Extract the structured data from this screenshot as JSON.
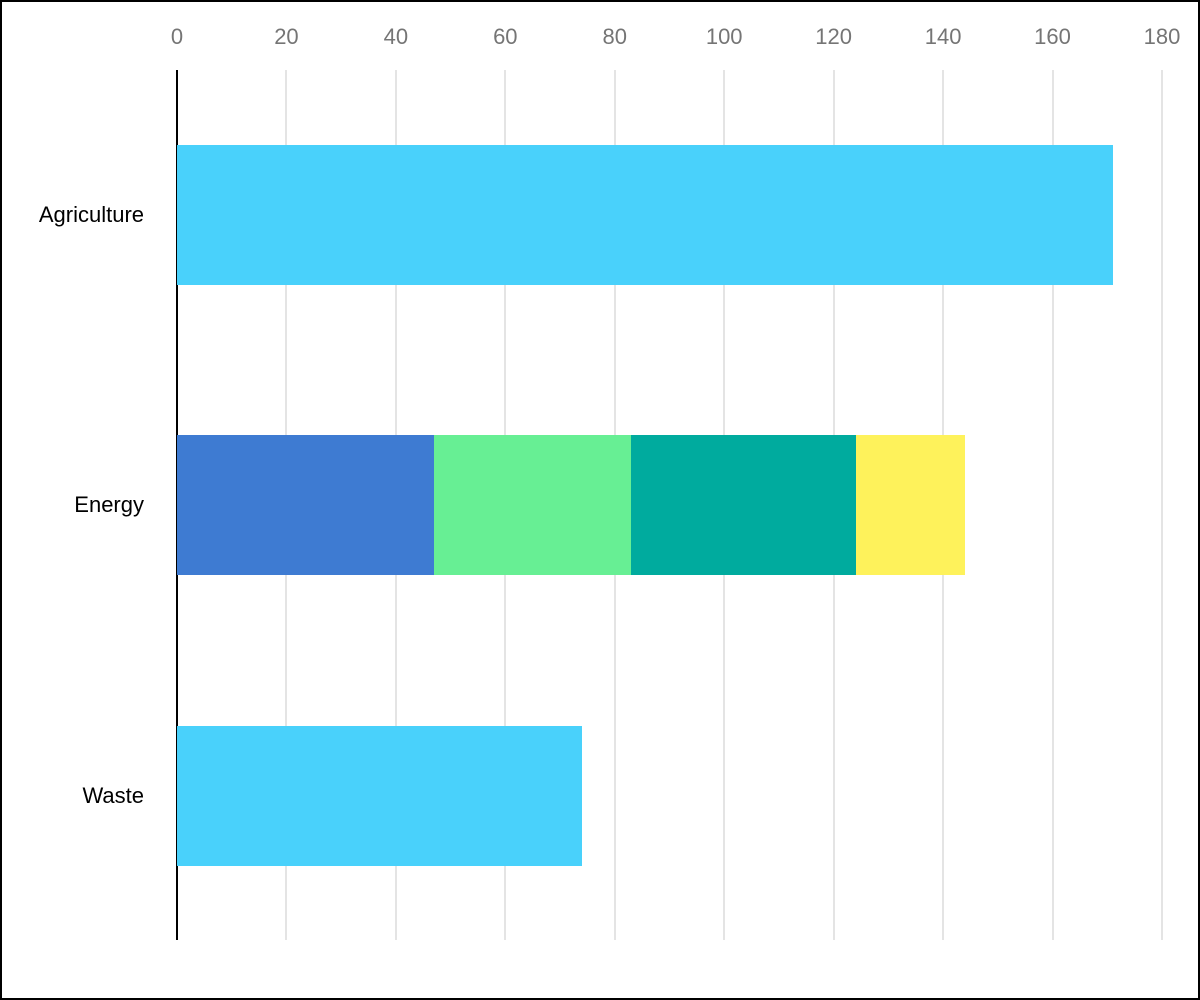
{
  "chart_data": {
    "type": "bar",
    "orientation": "horizontal",
    "title": "",
    "legend": "none",
    "grid": true,
    "categories": [
      "Agriculture",
      "Energy",
      "Waste"
    ],
    "x_axis": {
      "position": "top",
      "min": 0,
      "max": 180,
      "tick_interval": 20,
      "ticks": [
        0,
        20,
        40,
        60,
        80,
        100,
        120,
        140,
        160,
        180
      ]
    },
    "rows": [
      {
        "category": "Agriculture",
        "total": 171,
        "segments": [
          {
            "value": 171,
            "color": "#49D1FB"
          }
        ]
      },
      {
        "category": "Energy",
        "total": 144,
        "segments": [
          {
            "value": 47,
            "color": "#3E7BD2"
          },
          {
            "value": 36,
            "color": "#67EF94"
          },
          {
            "value": 41,
            "color": "#00AB9E"
          },
          {
            "value": 20,
            "color": "#FEF25B"
          }
        ]
      },
      {
        "category": "Waste",
        "total": 74,
        "segments": [
          {
            "value": 74,
            "color": "#49D1FB"
          }
        ]
      }
    ],
    "colors": {
      "axis_line": "#000000",
      "gridline": "#E4E4E4",
      "tick_label": "#757575",
      "category_label": "#000000",
      "background": "#FFFFFF",
      "border": "#000000"
    }
  }
}
